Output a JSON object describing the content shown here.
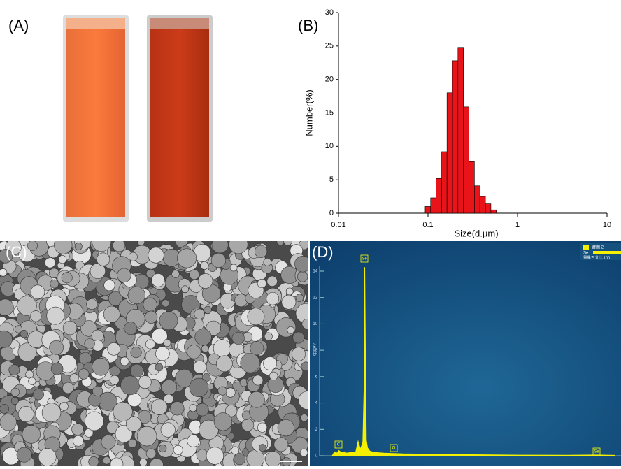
{
  "panel_labels": [
    "(A)",
    "(B)",
    "(C)",
    "(D)"
  ],
  "chart_data": [
    {
      "type": "histogram",
      "xlabel": "Size(d.μm)",
      "ylabel": "Number(%)",
      "log_x": true,
      "color": "#e8141a",
      "bins": [
        0.093,
        0.107,
        0.123,
        0.142,
        0.163,
        0.188,
        0.216,
        0.249,
        0.287,
        0.33,
        0.38,
        0.438,
        0.504,
        0.58
      ],
      "values": [
        1,
        2.3,
        5.2,
        9.2,
        18,
        22.8,
        24.8,
        15.9,
        7.7,
        4.1,
        2.5,
        1.4,
        0.5
      ],
      "xlim": [
        0.01,
        10
      ],
      "xticks": [
        0.01,
        0.1,
        1,
        10
      ],
      "ylim": [
        0,
        30
      ],
      "yticks": [
        0,
        5,
        10,
        15,
        20,
        25,
        30
      ]
    },
    {
      "type": "area",
      "ylabel": "cps/eV",
      "color": "#f5f000",
      "x": [
        0,
        0.1,
        0.2,
        0.28,
        0.35,
        0.45,
        0.52,
        0.6,
        0.8,
        1.0,
        1.1,
        1.2,
        1.3,
        1.35,
        1.38,
        1.41,
        1.45,
        1.5,
        1.6,
        1.8,
        2.2,
        3,
        4,
        6,
        8,
        10,
        11.2,
        12
      ],
      "y": [
        0,
        0.3,
        0.2,
        0.4,
        0.3,
        0.25,
        0.3,
        0.2,
        0.25,
        0.3,
        1.1,
        0.5,
        1.0,
        5,
        14.3,
        8,
        1.2,
        0.6,
        0.35,
        0.25,
        0.2,
        0.15,
        0.12,
        0.08,
        0.05,
        0.04,
        0.06,
        0.03
      ],
      "xlim": [
        0,
        12
      ],
      "ylim": [
        0,
        14.8
      ],
      "yticks": [
        0,
        2,
        4,
        6,
        8,
        10,
        12,
        14
      ],
      "peak_labels": [
        "C",
        "Se",
        "O",
        "Se"
      ],
      "legend": {
        "title": "谱图 2",
        "element": "Se",
        "note": "重量百分比 100"
      }
    }
  ]
}
